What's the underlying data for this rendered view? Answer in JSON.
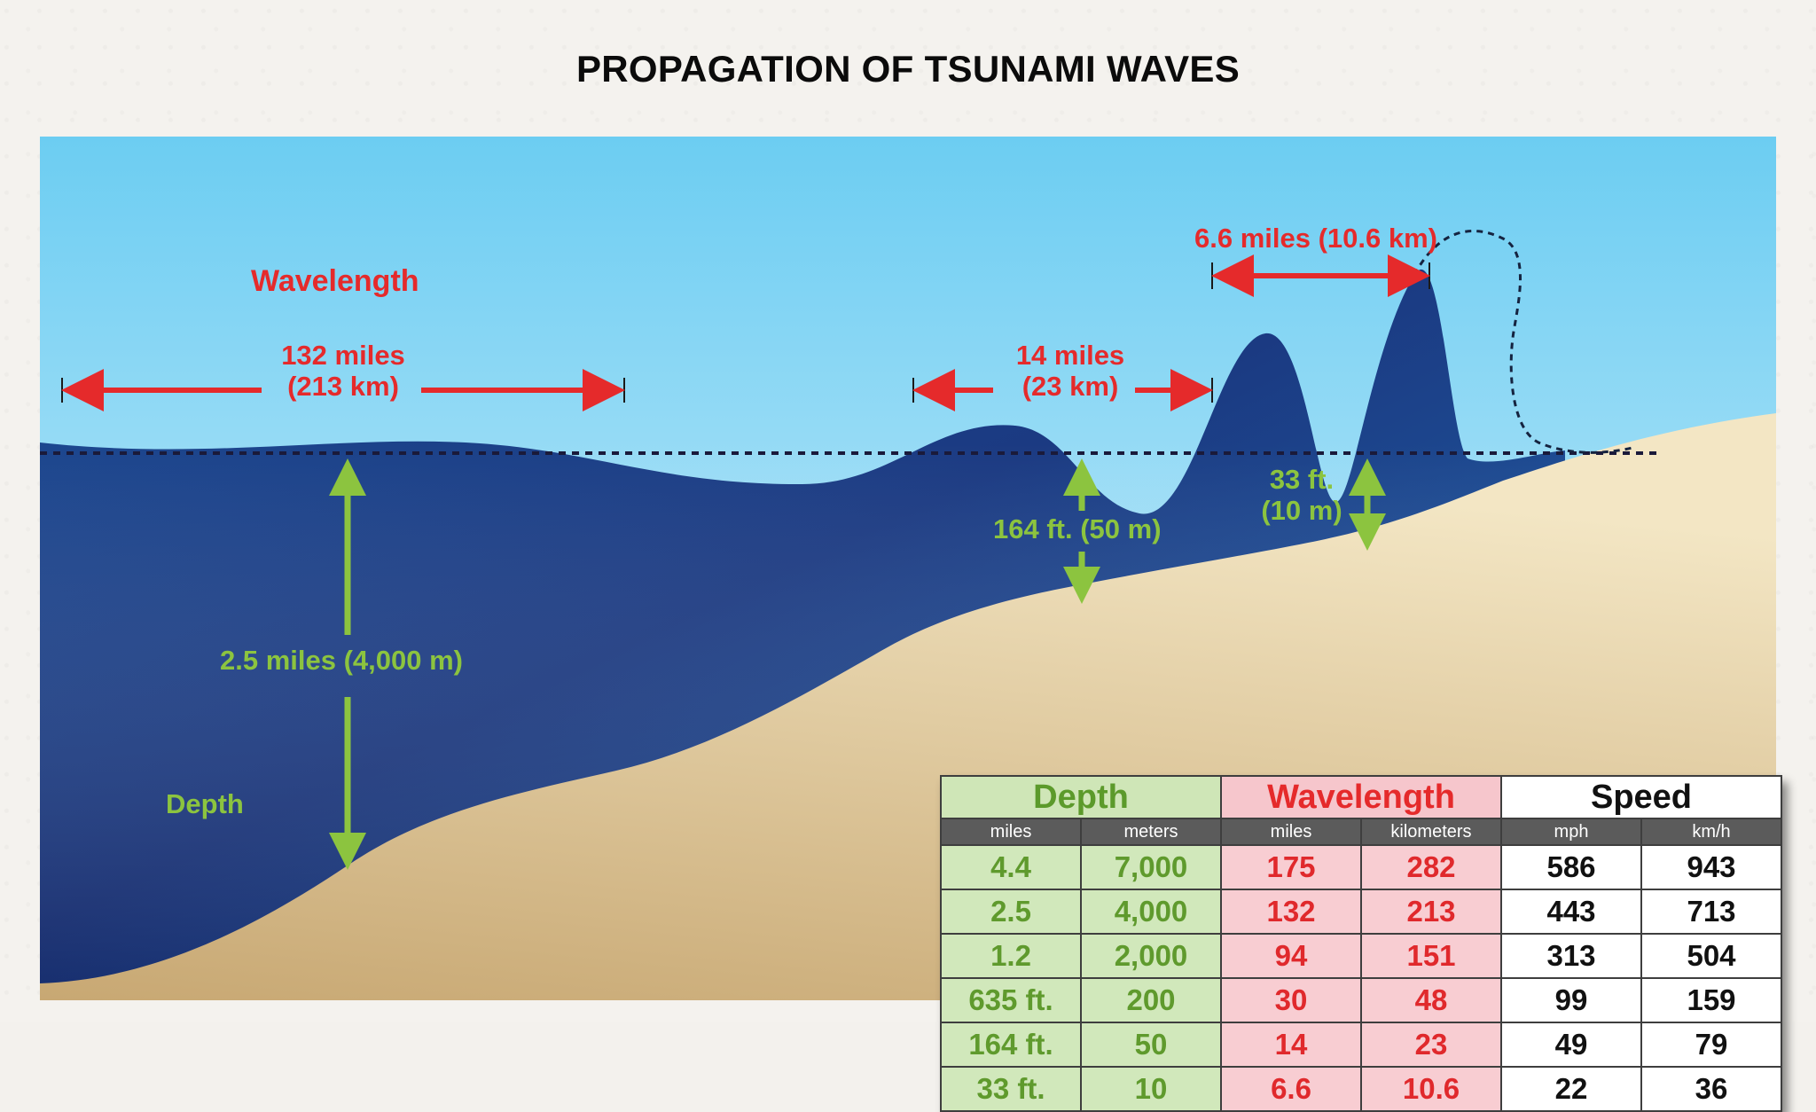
{
  "title": "PROPAGATION OF TSUNAMI WAVES",
  "colors": {
    "sky_top": "#6ccdf2",
    "sky_bottom": "#d9f1fb",
    "deep_water": "#1c3370",
    "shallow_water": "#1f6fb2",
    "seabed": "#d5b98a",
    "label_red": "#e52a2b",
    "label_green": "#8cc43f"
  },
  "labels": {
    "wavelength_heading": "Wavelength",
    "depth_heading": "Depth",
    "wl_132": [
      "132 miles",
      "(213 km)"
    ],
    "wl_14": [
      "14 miles",
      "(23 km)"
    ],
    "wl_6_6": "6.6 miles (10.6 km)",
    "depth_2_5": "2.5 miles (4,000 m)",
    "depth_164": "164 ft. (50 m)",
    "depth_33": [
      "33 ft.",
      "(10 m)"
    ]
  },
  "table": {
    "groups": [
      "Depth",
      "Wavelength",
      "Speed"
    ],
    "subheaders": [
      "miles",
      "meters",
      "miles",
      "kilometers",
      "mph",
      "km/h"
    ],
    "rows": [
      [
        "4.4",
        "7,000",
        "175",
        "282",
        "586",
        "943"
      ],
      [
        "2.5",
        "4,000",
        "132",
        "213",
        "443",
        "713"
      ],
      [
        "1.2",
        "2,000",
        "94",
        "151",
        "313",
        "504"
      ],
      [
        "635 ft.",
        "200",
        "30",
        "48",
        "99",
        "159"
      ],
      [
        "164 ft.",
        "50",
        "14",
        "23",
        "49",
        "79"
      ],
      [
        "33 ft.",
        "10",
        "6.6",
        "10.6",
        "22",
        "36"
      ]
    ]
  }
}
